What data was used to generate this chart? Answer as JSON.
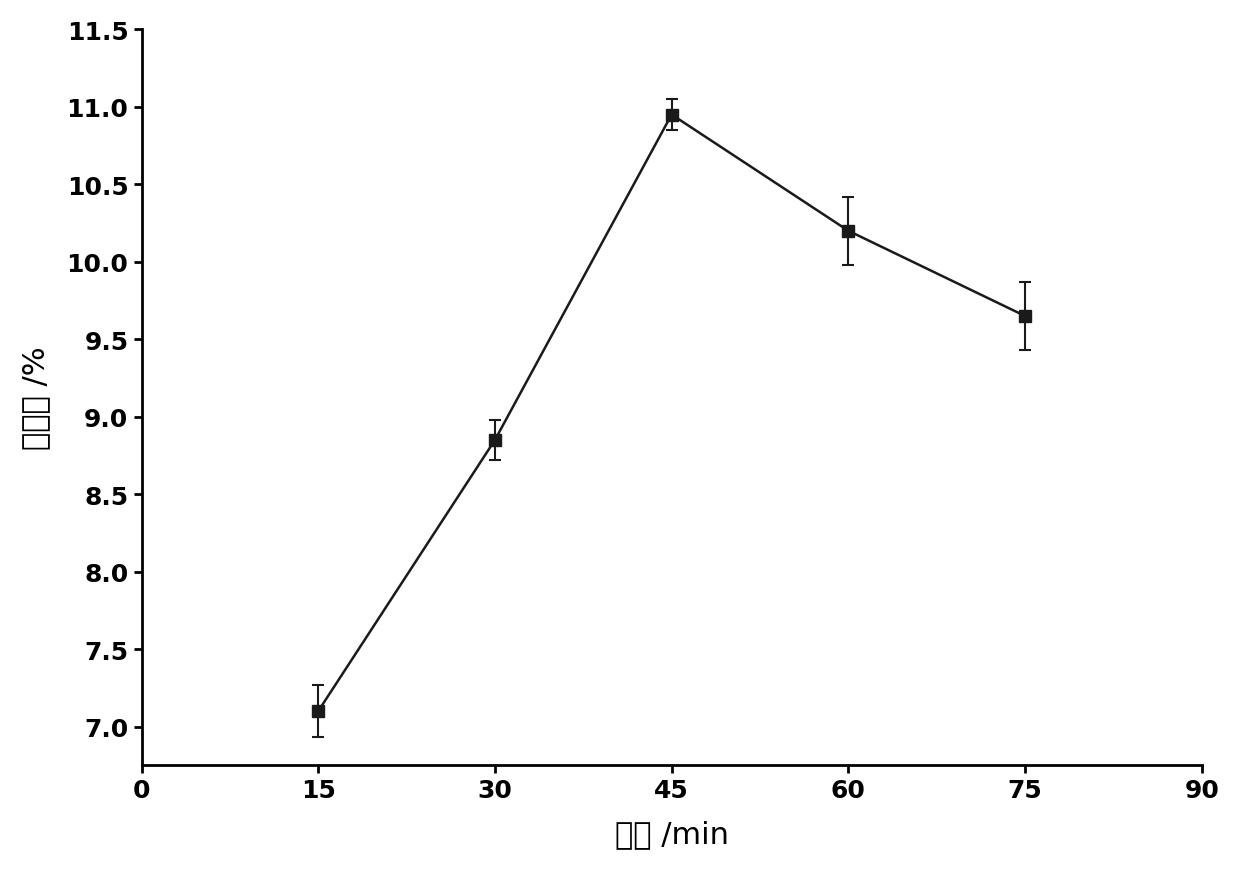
{
  "x": [
    15,
    30,
    45,
    60,
    75
  ],
  "y": [
    7.1,
    8.85,
    10.95,
    10.2,
    9.65
  ],
  "yerr": [
    0.17,
    0.13,
    0.1,
    0.22,
    0.22
  ],
  "xlabel": "时间 /min",
  "ylabel": "提取率 /%",
  "xlim": [
    0,
    90
  ],
  "ylim": [
    6.75,
    11.5
  ],
  "xticks": [
    0,
    15,
    30,
    45,
    60,
    75,
    90
  ],
  "yticks": [
    7.0,
    7.5,
    8.0,
    8.5,
    9.0,
    9.5,
    10.0,
    10.5,
    11.0,
    11.5
  ],
  "line_color": "#1a1a1a",
  "marker": "s",
  "marker_size": 8,
  "marker_color": "#1a1a1a",
  "line_width": 1.8,
  "capsize": 4,
  "elinewidth": 1.5,
  "xlabel_fontsize": 22,
  "ylabel_fontsize": 22,
  "tick_fontsize": 18,
  "background_color": "#ffffff"
}
